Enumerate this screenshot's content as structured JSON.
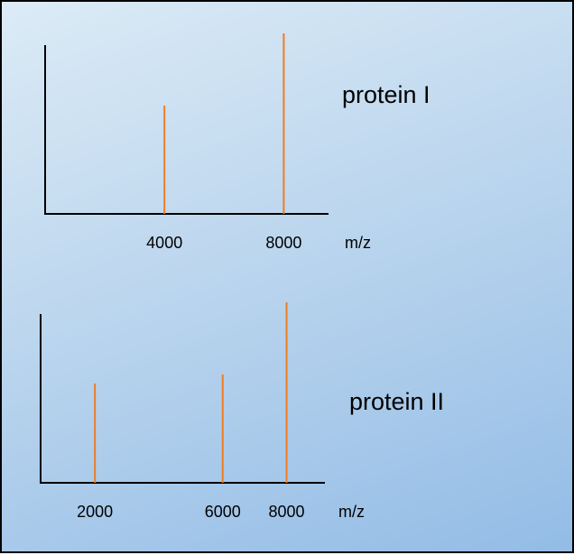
{
  "colors": {
    "axis": "#000000",
    "peak": "#f07c22"
  },
  "chart_data": [
    {
      "type": "bar",
      "label": "protein I",
      "xlabel": "m/z",
      "peaks": [
        {
          "x": 4000,
          "intensity": 0.6
        },
        {
          "x": 8000,
          "intensity": 1.0
        }
      ],
      "tick_labels": [
        "4000",
        "8000"
      ],
      "grid": false,
      "legend": "none"
    },
    {
      "type": "bar",
      "label": "protein II",
      "xlabel": "m/z",
      "peaks": [
        {
          "x": 2000,
          "intensity": 0.55
        },
        {
          "x": 6000,
          "intensity": 0.6
        },
        {
          "x": 8000,
          "intensity": 1.0
        }
      ],
      "tick_labels": [
        "2000",
        "6000",
        "8000"
      ],
      "grid": false,
      "legend": "none"
    }
  ]
}
